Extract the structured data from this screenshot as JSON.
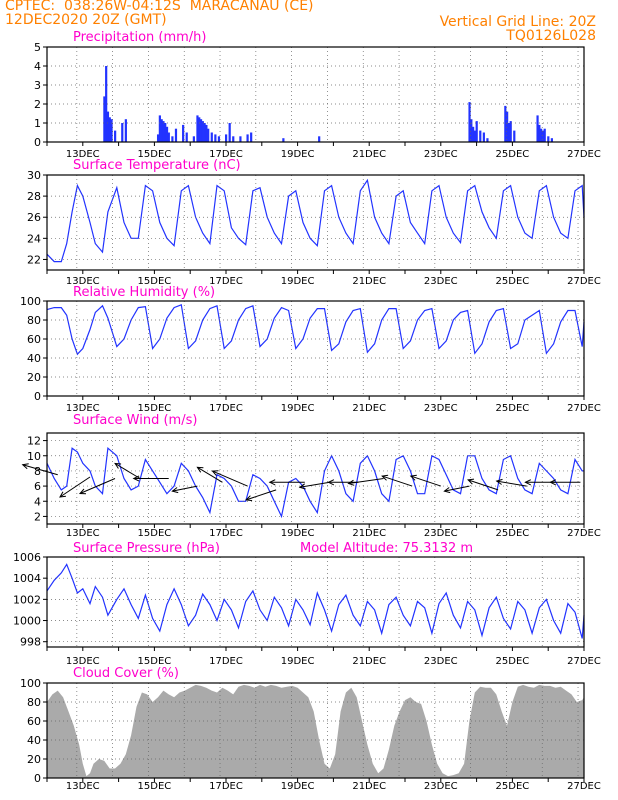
{
  "header": {
    "left_line1": "CPTEC:  038:26W-04:12S  MARACANAU (CE)",
    "left_line2": "12DEC2020 20Z (GMT)",
    "right_line1": "Vertical Grid Line: 20Z",
    "right_line2": "TQ0126L028"
  },
  "colors": {
    "header": "#ff8000",
    "title": "#ff00cc",
    "series": "#2233ff",
    "bars": "#2233ff",
    "cloud": "#aaaaaa",
    "grid": "#666666"
  },
  "chart_data": [
    {
      "type": "bar",
      "title": "Precipitation (mm/h)",
      "ylim": [
        0,
        5
      ],
      "yticks": [
        0,
        1,
        2,
        3,
        4,
        5
      ],
      "x_range": [
        12.0,
        27.0
      ],
      "xticks": [
        "13DEC",
        "15DEC",
        "17DEC",
        "19DEC",
        "21DEC",
        "23DEC",
        "25DEC",
        "27DEC"
      ],
      "x": [
        13.6,
        13.65,
        13.7,
        13.75,
        13.8,
        13.9,
        14.1,
        14.2,
        15.1,
        15.15,
        15.2,
        15.25,
        15.3,
        15.35,
        15.4,
        15.5,
        15.6,
        15.8,
        15.9,
        16.1,
        16.2,
        16.25,
        16.3,
        16.35,
        16.4,
        16.45,
        16.5,
        16.6,
        16.7,
        16.8,
        17.0,
        17.1,
        17.2,
        17.4,
        17.6,
        17.7,
        18.6,
        19.6,
        23.8,
        23.85,
        23.9,
        23.95,
        24.0,
        24.1,
        24.2,
        24.3,
        24.8,
        24.85,
        24.9,
        24.95,
        25.05,
        25.7,
        25.75,
        25.8,
        25.85,
        25.9,
        26.0,
        26.1
      ],
      "values": [
        2.4,
        4.0,
        1.6,
        1.3,
        1.2,
        0.6,
        1.0,
        1.2,
        0.4,
        1.4,
        1.2,
        1.1,
        1.0,
        0.8,
        0.5,
        0.3,
        0.7,
        0.9,
        0.5,
        0.3,
        1.4,
        1.3,
        1.2,
        1.1,
        1.0,
        0.9,
        0.7,
        0.5,
        0.4,
        0.3,
        0.4,
        1.0,
        0.3,
        0.3,
        0.4,
        0.5,
        0.2,
        0.3,
        2.1,
        1.2,
        0.8,
        0.6,
        1.1,
        0.6,
        0.5,
        0.2,
        1.9,
        1.6,
        1.0,
        1.1,
        0.6,
        1.4,
        0.9,
        0.7,
        0.6,
        0.7,
        0.3,
        0.2
      ],
      "grid": true
    },
    {
      "type": "line",
      "title": "Surface Temperature (nC)",
      "ylim": [
        21,
        30
      ],
      "yticks": [
        22,
        24,
        26,
        28,
        30
      ],
      "x_range": [
        12.0,
        27.0
      ],
      "xticks": [
        "13DEC",
        "15DEC",
        "17DEC",
        "19DEC",
        "21DEC",
        "23DEC",
        "25DEC",
        "27DEC"
      ],
      "x": [
        12.0,
        12.2,
        12.4,
        12.55,
        12.7,
        12.85,
        13.0,
        13.2,
        13.35,
        13.55,
        13.7,
        13.95,
        14.15,
        14.35,
        14.55,
        14.75,
        14.95,
        15.15,
        15.35,
        15.55,
        15.75,
        15.95,
        16.15,
        16.35,
        16.55,
        16.75,
        16.95,
        17.15,
        17.35,
        17.55,
        17.75,
        17.95,
        18.15,
        18.35,
        18.55,
        18.75,
        18.95,
        19.15,
        19.35,
        19.55,
        19.75,
        19.95,
        20.15,
        20.35,
        20.55,
        20.75,
        20.95,
        21.15,
        21.35,
        21.55,
        21.75,
        21.95,
        22.15,
        22.35,
        22.55,
        22.75,
        22.95,
        23.15,
        23.35,
        23.55,
        23.75,
        23.95,
        24.15,
        24.35,
        24.55,
        24.75,
        24.95,
        25.15,
        25.35,
        25.55,
        25.75,
        25.95,
        26.15,
        26.35,
        26.55,
        26.75,
        26.95,
        27.0
      ],
      "values": [
        22.5,
        21.8,
        21.8,
        23.5,
        26.5,
        29.0,
        28.0,
        25.5,
        23.5,
        22.7,
        26.5,
        28.8,
        25.5,
        24.0,
        24.0,
        29.0,
        28.5,
        25.5,
        24.0,
        23.3,
        28.5,
        29.0,
        26.0,
        24.5,
        23.5,
        29.0,
        28.5,
        25.0,
        24.0,
        23.4,
        28.5,
        28.8,
        26.0,
        24.5,
        23.5,
        28.0,
        28.5,
        25.5,
        24.0,
        23.3,
        28.5,
        29.0,
        26.0,
        24.5,
        23.5,
        28.5,
        29.5,
        26.0,
        24.5,
        23.5,
        28.0,
        28.5,
        25.5,
        24.5,
        23.5,
        28.5,
        29.0,
        26.0,
        24.5,
        23.6,
        28.5,
        29.0,
        26.5,
        25.0,
        24.0,
        28.5,
        29.0,
        26.0,
        24.5,
        24.0,
        28.5,
        29.0,
        26.0,
        24.5,
        24.0,
        28.5,
        29.0,
        26.0
      ],
      "grid": true
    },
    {
      "type": "line",
      "title": "Relative Humidity (%)",
      "ylim": [
        0,
        100
      ],
      "yticks": [
        0,
        20,
        40,
        60,
        80,
        100
      ],
      "x_range": [
        12.0,
        27.0
      ],
      "xticks": [
        "13DEC",
        "15DEC",
        "17DEC",
        "19DEC",
        "21DEC",
        "23DEC",
        "25DEC",
        "27DEC"
      ],
      "x": [
        12.0,
        12.2,
        12.4,
        12.55,
        12.7,
        12.85,
        13.0,
        13.2,
        13.35,
        13.55,
        13.7,
        13.95,
        14.15,
        14.35,
        14.55,
        14.75,
        14.95,
        15.15,
        15.35,
        15.55,
        15.75,
        15.95,
        16.15,
        16.35,
        16.55,
        16.75,
        16.95,
        17.15,
        17.35,
        17.55,
        17.75,
        17.95,
        18.15,
        18.35,
        18.55,
        18.75,
        18.95,
        19.15,
        19.35,
        19.55,
        19.75,
        19.95,
        20.15,
        20.35,
        20.55,
        20.75,
        20.95,
        21.15,
        21.35,
        21.55,
        21.75,
        21.95,
        22.15,
        22.35,
        22.55,
        22.75,
        22.95,
        23.15,
        23.35,
        23.55,
        23.75,
        23.95,
        24.15,
        24.35,
        24.55,
        24.75,
        24.95,
        25.15,
        25.35,
        25.55,
        25.75,
        25.95,
        26.15,
        26.35,
        26.55,
        26.75,
        26.95,
        27.0
      ],
      "values": [
        91,
        93,
        93,
        85,
        60,
        44,
        50,
        70,
        88,
        95,
        82,
        52,
        60,
        80,
        93,
        94,
        50,
        60,
        82,
        93,
        96,
        50,
        58,
        80,
        92,
        95,
        50,
        58,
        80,
        92,
        95,
        52,
        60,
        82,
        93,
        90,
        50,
        60,
        82,
        92,
        92,
        48,
        55,
        78,
        90,
        92,
        46,
        55,
        80,
        92,
        92,
        50,
        58,
        80,
        90,
        92,
        50,
        58,
        80,
        88,
        90,
        45,
        55,
        78,
        90,
        92,
        50,
        55,
        80,
        85,
        90,
        45,
        55,
        78,
        90,
        90,
        52,
        78
      ],
      "grid": true
    },
    {
      "type": "line",
      "title": "Surface Wind (m/s)",
      "ylim": [
        1,
        13
      ],
      "yticks": [
        2,
        4,
        6,
        8,
        10,
        12
      ],
      "x_range": [
        12.0,
        27.0
      ],
      "xticks": [
        "13DEC",
        "15DEC",
        "17DEC",
        "19DEC",
        "21DEC",
        "23DEC",
        "25DEC",
        "27DEC"
      ],
      "x": [
        12.0,
        12.2,
        12.4,
        12.55,
        12.7,
        12.85,
        13.0,
        13.2,
        13.35,
        13.55,
        13.7,
        13.95,
        14.15,
        14.35,
        14.55,
        14.75,
        14.95,
        15.15,
        15.35,
        15.55,
        15.75,
        15.95,
        16.15,
        16.35,
        16.55,
        16.75,
        16.95,
        17.15,
        17.35,
        17.55,
        17.75,
        17.95,
        18.15,
        18.35,
        18.55,
        18.75,
        18.95,
        19.15,
        19.35,
        19.55,
        19.75,
        19.95,
        20.15,
        20.35,
        20.55,
        20.75,
        20.95,
        21.15,
        21.35,
        21.55,
        21.75,
        21.95,
        22.15,
        22.35,
        22.55,
        22.75,
        22.95,
        23.15,
        23.35,
        23.55,
        23.75,
        23.95,
        24.15,
        24.35,
        24.55,
        24.75,
        24.95,
        25.15,
        25.35,
        25.55,
        25.75,
        25.95,
        26.15,
        26.35,
        26.55,
        26.75,
        26.95,
        27.0
      ],
      "values": [
        9,
        7,
        5.5,
        6,
        11,
        10.5,
        9,
        8,
        6,
        5,
        11,
        10,
        7,
        5.5,
        6,
        9.5,
        8,
        6.5,
        5,
        6,
        9,
        8,
        6,
        4.5,
        2.5,
        7.5,
        7,
        6,
        4,
        4,
        7.5,
        7,
        6,
        4,
        2,
        6.5,
        7,
        6,
        4,
        2.5,
        8,
        10,
        8,
        5,
        4,
        9,
        10,
        8,
        5,
        4,
        9.5,
        10,
        8,
        5,
        5,
        10,
        9.5,
        7.5,
        5.5,
        5,
        10,
        10,
        7,
        5.5,
        5,
        9.5,
        10,
        7,
        5.5,
        5,
        9,
        8,
        7,
        5.5,
        5,
        9.5,
        8,
        8
      ],
      "vectors": {
        "x": [
          12.3,
          13.2,
          13.9,
          14.6,
          15.4,
          16.2,
          16.9,
          17.6,
          18.4,
          19.2,
          19.9,
          20.7,
          21.4,
          22.2,
          23.0,
          23.8,
          24.6,
          25.4,
          26.2,
          26.9
        ],
        "y": [
          7.5,
          7.2,
          7.0,
          7.0,
          7.0,
          6.0,
          6.5,
          6.0,
          5.5,
          6.5,
          6.5,
          6.5,
          7.0,
          6.0,
          6.0,
          6.0,
          5.5,
          6.0,
          6.5,
          6.5
        ],
        "u": [
          -7,
          -6,
          -7,
          -5,
          -7,
          -5,
          -5,
          -7,
          -6,
          -7,
          -6,
          -6,
          -7,
          -6,
          -6,
          -5,
          -6,
          -6,
          -6,
          -6
        ],
        "v": [
          2,
          -4,
          -3,
          3,
          0,
          -1,
          3,
          3,
          -2,
          0,
          -1,
          0,
          -1,
          2,
          2,
          -1,
          2,
          1,
          0,
          0
        ]
      },
      "grid": true
    },
    {
      "type": "line",
      "title": "Surface Pressure (hPa)",
      "annotation": "Model Altitude: 75.3132 m",
      "ylim": [
        997.5,
        1006
      ],
      "yticks": [
        998,
        1000,
        1002,
        1004,
        1006
      ],
      "x_range": [
        12.0,
        27.0
      ],
      "xticks": [
        "13DEC",
        "15DEC",
        "17DEC",
        "19DEC",
        "21DEC",
        "23DEC",
        "25DEC",
        "27DEC"
      ],
      "x": [
        12.0,
        12.2,
        12.4,
        12.55,
        12.7,
        12.85,
        13.0,
        13.2,
        13.35,
        13.55,
        13.7,
        13.95,
        14.15,
        14.35,
        14.55,
        14.75,
        14.95,
        15.15,
        15.35,
        15.55,
        15.75,
        15.95,
        16.15,
        16.35,
        16.55,
        16.75,
        16.95,
        17.15,
        17.35,
        17.55,
        17.75,
        17.95,
        18.15,
        18.35,
        18.55,
        18.75,
        18.95,
        19.15,
        19.35,
        19.55,
        19.75,
        19.95,
        20.15,
        20.35,
        20.55,
        20.75,
        20.95,
        21.15,
        21.35,
        21.55,
        21.75,
        21.95,
        22.15,
        22.35,
        22.55,
        22.75,
        22.95,
        23.15,
        23.35,
        23.55,
        23.75,
        23.95,
        24.15,
        24.35,
        24.55,
        24.75,
        24.95,
        25.15,
        25.35,
        25.55,
        25.75,
        25.95,
        26.15,
        26.35,
        26.55,
        26.75,
        26.95,
        27.0
      ],
      "values": [
        1002.8,
        1003.8,
        1004.5,
        1005.3,
        1004.0,
        1002.6,
        1003.0,
        1001.6,
        1003.2,
        1002.2,
        1000.5,
        1002.0,
        1003.0,
        1001.5,
        1000.2,
        1002.4,
        1000.2,
        999.0,
        1001.5,
        1003.0,
        1001.5,
        999.5,
        1000.5,
        1002.5,
        1001.5,
        1000.0,
        1002.0,
        1001.0,
        999.3,
        1001.8,
        1002.8,
        1001.0,
        1000.0,
        1002.2,
        1001.2,
        999.5,
        1002.0,
        1001.0,
        999.6,
        1002.6,
        1001.0,
        999.0,
        1001.5,
        1002.4,
        1000.5,
        999.5,
        1001.8,
        1001.0,
        998.8,
        1001.5,
        1002.2,
        1000.5,
        999.5,
        1001.8,
        1001.2,
        998.8,
        1001.6,
        1002.6,
        1000.5,
        999.3,
        1001.8,
        1001.0,
        998.6,
        1001.2,
        1002.2,
        1000.2,
        999.2,
        1001.8,
        1001.0,
        998.8,
        1001.2,
        1002.0,
        1000.0,
        998.8,
        1001.6,
        1000.8,
        998.3,
        1000.5
      ],
      "grid": true
    },
    {
      "type": "area",
      "title": "Cloud Cover (%)",
      "ylim": [
        0,
        100
      ],
      "yticks": [
        0,
        20,
        40,
        60,
        80,
        100
      ],
      "x_range": [
        12.0,
        27.0
      ],
      "xticks": [
        "13DEC",
        "15DEC",
        "17DEC",
        "19DEC",
        "21DEC",
        "23DEC",
        "25DEC",
        "27DEC"
      ],
      "x": [
        12.0,
        12.15,
        12.3,
        12.45,
        12.6,
        12.75,
        12.9,
        13.0,
        13.1,
        13.2,
        13.3,
        13.45,
        13.6,
        13.75,
        13.9,
        14.05,
        14.2,
        14.35,
        14.5,
        14.65,
        14.8,
        14.95,
        15.1,
        15.25,
        15.4,
        15.55,
        15.7,
        15.85,
        16.0,
        16.15,
        16.3,
        16.45,
        16.6,
        16.75,
        16.9,
        17.05,
        17.2,
        17.35,
        17.5,
        17.65,
        17.8,
        17.95,
        18.1,
        18.25,
        18.4,
        18.55,
        18.7,
        18.85,
        19.0,
        19.15,
        19.3,
        19.45,
        19.6,
        19.75,
        19.9,
        20.05,
        20.2,
        20.35,
        20.5,
        20.65,
        20.8,
        20.95,
        21.1,
        21.25,
        21.4,
        21.55,
        21.7,
        21.85,
        22.0,
        22.15,
        22.3,
        22.45,
        22.6,
        22.75,
        22.9,
        23.05,
        23.2,
        23.35,
        23.5,
        23.65,
        23.8,
        23.95,
        24.1,
        24.25,
        24.4,
        24.55,
        24.7,
        24.85,
        25.0,
        25.15,
        25.3,
        25.45,
        25.6,
        25.75,
        25.9,
        26.05,
        26.2,
        26.35,
        26.5,
        26.65,
        26.8,
        26.95,
        27.0
      ],
      "values": [
        80,
        88,
        92,
        85,
        70,
        55,
        35,
        15,
        2,
        5,
        15,
        20,
        18,
        10,
        10,
        15,
        25,
        45,
        75,
        90,
        88,
        80,
        85,
        92,
        88,
        85,
        90,
        92,
        95,
        98,
        97,
        95,
        92,
        90,
        95,
        92,
        88,
        96,
        98,
        97,
        95,
        98,
        96,
        98,
        97,
        95,
        96,
        97,
        95,
        90,
        85,
        70,
        40,
        15,
        10,
        25,
        70,
        90,
        95,
        85,
        60,
        35,
        15,
        5,
        10,
        30,
        55,
        70,
        82,
        85,
        80,
        78,
        60,
        35,
        15,
        5,
        2,
        3,
        5,
        15,
        60,
        90,
        96,
        95,
        95,
        88,
        70,
        55,
        80,
        96,
        98,
        96,
        95,
        98,
        97,
        97,
        95,
        96,
        92,
        88,
        80,
        82,
        85
      ],
      "grid": true
    }
  ]
}
